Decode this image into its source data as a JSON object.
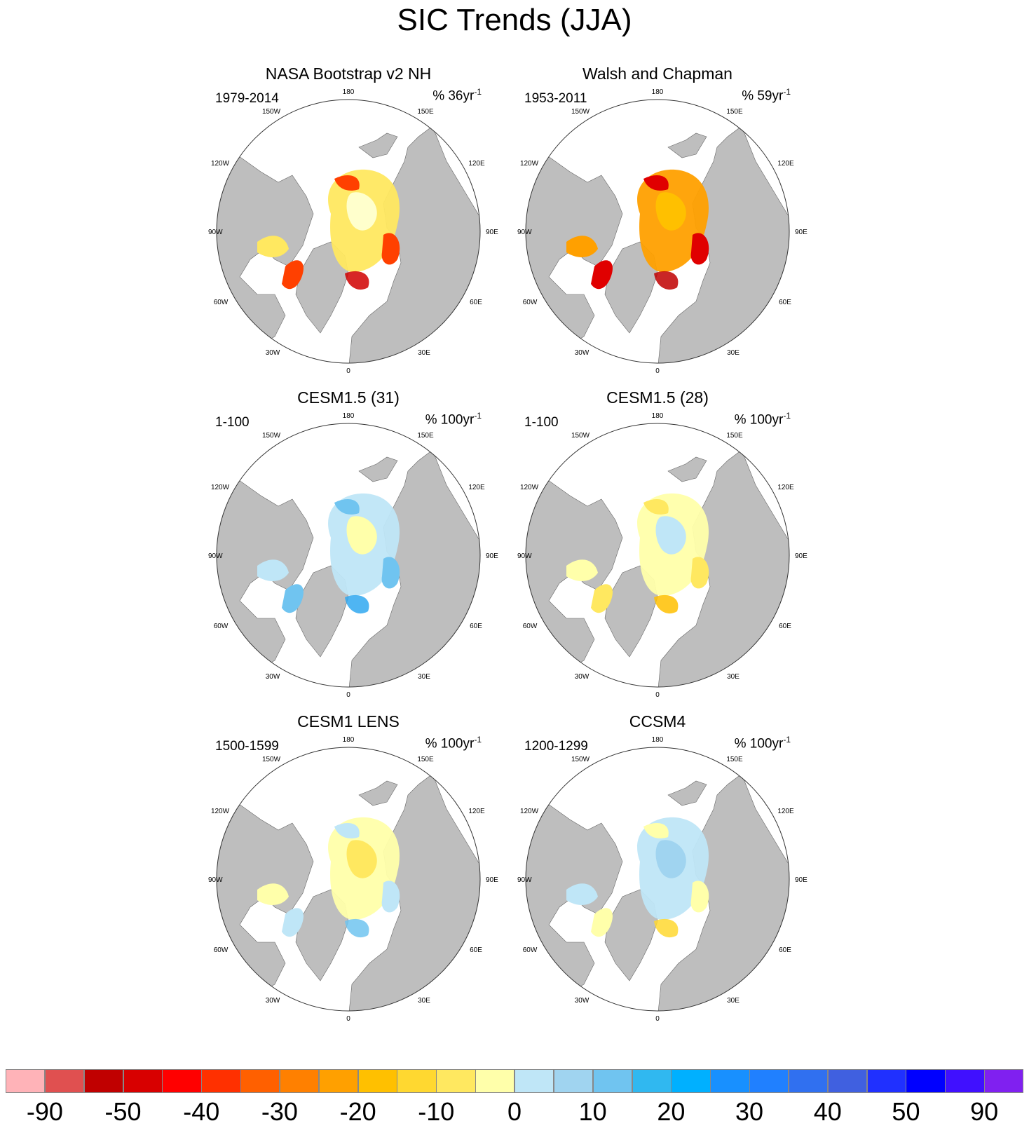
{
  "title": "SIC Trends (JJA)",
  "panels": [
    {
      "title": "NASA Bootstrap v2 NH",
      "period": "1979-2014",
      "units": "% 36yr",
      "units_sup": "-1",
      "scheme": "obs1"
    },
    {
      "title": "Walsh and Chapman",
      "period": "1953-2011",
      "units": "% 59yr",
      "units_sup": "-1",
      "scheme": "obs2"
    },
    {
      "title": "CESM1.5 (31)",
      "period": "1-100",
      "units": "% 100yr",
      "units_sup": "-1",
      "scheme": "blue"
    },
    {
      "title": "CESM1.5 (28)",
      "period": "1-100",
      "units": "% 100yr",
      "units_sup": "-1",
      "scheme": "yellow"
    },
    {
      "title": "CESM1 LENS",
      "period": "1500-1599",
      "units": "% 100yr",
      "units_sup": "-1",
      "scheme": "mixed1"
    },
    {
      "title": "CCSM4",
      "period": "1200-1299",
      "units": "% 100yr",
      "units_sup": "-1",
      "scheme": "mixed2"
    }
  ],
  "map_labels": {
    "top": "180",
    "bottom": "0",
    "upper_left": "150W",
    "upper_right": "150E",
    "left_upper": "120W",
    "right_upper": "120E",
    "left": "90W",
    "right": "90E",
    "left_lower": "60W",
    "right_lower": "60E",
    "lower_left": "30W",
    "lower_right": "30E"
  },
  "colorbar": {
    "colors": [
      "#ffb3b8",
      "#e05050",
      "#c00000",
      "#d80000",
      "#ff0000",
      "#ff3000",
      "#ff6000",
      "#ff8000",
      "#ffa000",
      "#ffc000",
      "#ffd830",
      "#ffe860",
      "#ffffaa",
      "#bfe6f7",
      "#a0d4f0",
      "#70c4f0",
      "#30b8f0",
      "#00b0ff",
      "#1890ff",
      "#2080ff",
      "#3070f0",
      "#4060e0",
      "#2030ff",
      "#0000ff",
      "#4010ff",
      "#8020f0"
    ],
    "tick_labels": [
      "-90",
      "-50",
      "-40",
      "-30",
      "-20",
      "-10",
      "0",
      "10",
      "20",
      "30",
      "40",
      "50",
      "90"
    ]
  }
}
